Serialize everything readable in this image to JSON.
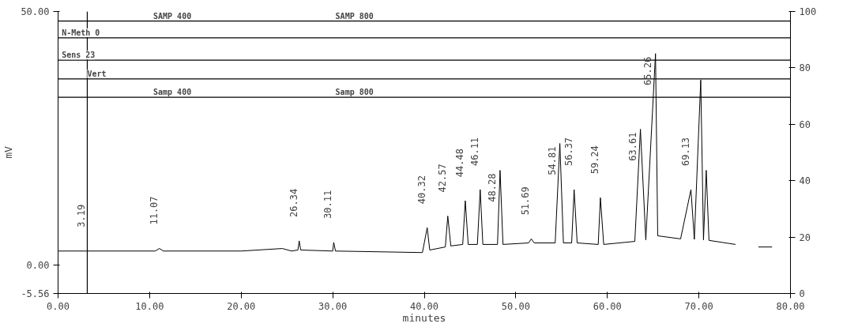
{
  "chart_data": {
    "type": "line",
    "xlabel": "minutes",
    "ylabel": "mV",
    "xlim": [
      0,
      80
    ],
    "xticks": [
      {
        "value": 0,
        "label": "0.00"
      },
      {
        "value": 10,
        "label": "10.00"
      },
      {
        "value": 20,
        "label": "20.00"
      },
      {
        "value": 30,
        "label": "30.00"
      },
      {
        "value": 40,
        "label": "40.00"
      },
      {
        "value": 50,
        "label": "50.00"
      },
      {
        "value": 60,
        "label": "60.00"
      },
      {
        "value": 70,
        "label": "70.00"
      },
      {
        "value": 80,
        "label": "80.00"
      }
    ],
    "ylim": [
      -5.56,
      50
    ],
    "yticks": [
      {
        "value": -5.56,
        "label": "-5.56"
      },
      {
        "value": 0,
        "label": "0.00"
      },
      {
        "value": 50,
        "label": "50.00"
      }
    ],
    "y2lim": [
      0,
      100
    ],
    "y2ticks": [
      0,
      20,
      40,
      60,
      80,
      100
    ],
    "grid": false,
    "marker": "none",
    "line_style": "solid",
    "series": [
      {
        "color": "#000000",
        "x": [
          0,
          3.0,
          3.19,
          3.4,
          10.6,
          11.07,
          11.5,
          20,
          24.5,
          25.5,
          26.2,
          26.34,
          26.5,
          30.0,
          30.11,
          30.3,
          39.8,
          40.32,
          40.6,
          42.3,
          42.57,
          42.9,
          44.2,
          44.48,
          44.8,
          45.8,
          46.11,
          46.4,
          48.0,
          48.28,
          48.6,
          51.4,
          51.69,
          52.0,
          54.3,
          54.81,
          55.2,
          56.1,
          56.37,
          56.7,
          59.0,
          59.24,
          59.6,
          63.0,
          63.61,
          64.2,
          65.26,
          65.5,
          68.0,
          69.13,
          69.5,
          70.2,
          70.5,
          70.8,
          71.1,
          74.0,
          74.5,
          76.5,
          78.0
        ],
        "values": [
          2.8,
          2.8,
          2.8,
          2.8,
          2.8,
          3.3,
          2.8,
          2.8,
          3.3,
          2.8,
          3.0,
          4.8,
          3.0,
          2.8,
          4.5,
          2.8,
          2.5,
          7.4,
          3.0,
          3.6,
          9.7,
          3.8,
          4.1,
          12.7,
          4.1,
          4.1,
          14.9,
          4.1,
          4.1,
          18.7,
          4.1,
          4.4,
          5.2,
          4.4,
          4.4,
          24,
          4.4,
          4.4,
          14.9,
          4.4,
          4.1,
          13.3,
          4.1,
          4.7,
          26.8,
          5.0,
          41.7,
          5.8,
          5.2,
          14.9,
          5.1,
          36.5,
          5.0,
          18.7,
          4.9,
          4.1,
          null,
          3.6,
          3.6
        ]
      }
    ],
    "ref_lines": [
      {
        "axis": "y",
        "value": 48.1
      },
      {
        "axis": "y",
        "value": 44.8
      },
      {
        "axis": "y",
        "value": 40.4
      },
      {
        "axis": "y",
        "value": 36.7
      },
      {
        "axis": "y",
        "value": 33.1
      },
      {
        "axis": "x",
        "value": 3.19
      }
    ],
    "annotations": [
      {
        "text": "SAMP 400",
        "x": 10.4,
        "y": 48.1
      },
      {
        "text": "SAMP 800",
        "x": 30.3,
        "y": 48.1
      },
      {
        "text": "N-Meth 0",
        "x": 0.4,
        "y": 44.8
      },
      {
        "text": "Sens 23",
        "x": 0.4,
        "y": 40.4
      },
      {
        "text": "Vert",
        "x": 3.19,
        "y": 36.7
      },
      {
        "text": "Samp 400",
        "x": 10.4,
        "y": 33.1
      },
      {
        "text": "Samp 800",
        "x": 30.3,
        "y": 33.1
      },
      {
        "text": "3.19",
        "x": 3.19,
        "y": 2.8
      },
      {
        "text": "11.07",
        "x": 11.07,
        "y": 3.3
      },
      {
        "text": "26.34",
        "x": 26.34,
        "y": 4.8
      },
      {
        "text": "30.11",
        "x": 30.11,
        "y": 4.5
      },
      {
        "text": "40.32",
        "x": 40.32,
        "y": 7.4
      },
      {
        "text": "42.57",
        "x": 42.57,
        "y": 9.7
      },
      {
        "text": "44.48",
        "x": 44.48,
        "y": 12.7
      },
      {
        "text": "46.11",
        "x": 46.11,
        "y": 14.9
      },
      {
        "text": "48.28",
        "x": 48.28,
        "y": 18.7
      },
      {
        "text": "51.69",
        "x": 51.69,
        "y": 5.2
      },
      {
        "text": "54.81",
        "x": 54.81,
        "y": 24
      },
      {
        "text": "56.37",
        "x": 56.37,
        "y": 14.9
      },
      {
        "text": "59.24",
        "x": 59.24,
        "y": 13.3
      },
      {
        "text": "63.61",
        "x": 63.61,
        "y": 26.8
      },
      {
        "text": "65.26",
        "x": 65.26,
        "y": 41.7
      },
      {
        "text": "69.13",
        "x": 69.13,
        "y": 14.9
      }
    ]
  }
}
